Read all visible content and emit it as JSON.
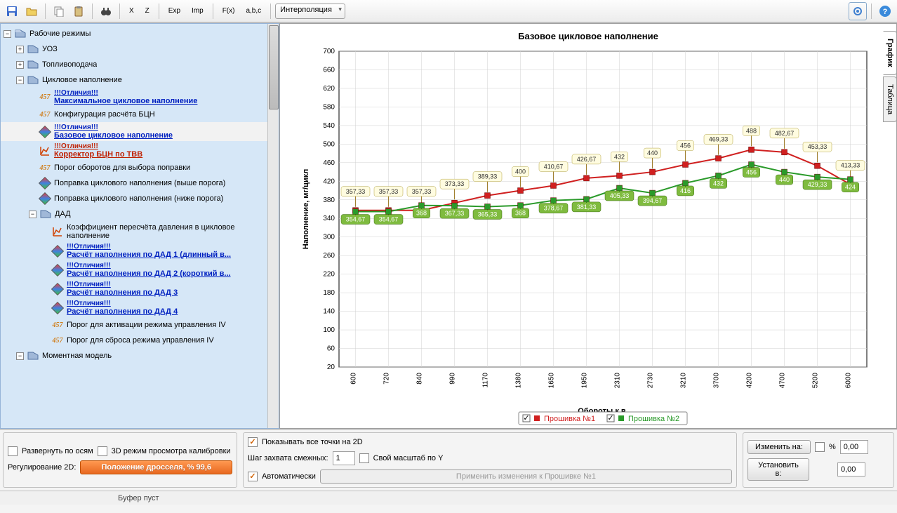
{
  "toolbar": {
    "dropdown_mode": "Интерполяция"
  },
  "tree": {
    "root": "Рабочие режимы",
    "uoz": "УОЗ",
    "fuel": "Топливоподача",
    "cycle_fill": "Цикловое наполнение",
    "diff_label": "!!!Отличия!!!",
    "max_cycle": "Максимальное цикловое наполнение",
    "config_bcn": "Конфигурация расчёта БЦН",
    "base_cycle": "Базовое цикловое наполнение",
    "corrector": "Корректор БЦН по ТВВ",
    "threshold_rpm": "Порог оборотов для выбора поправки",
    "corr_above": "Поправка циклового наполнения (выше порога)",
    "corr_below": "Поправка циклового наполнения (ниже порога)",
    "dad": "ДАД",
    "dad_coef": "Коэффициент пересчёта давления в цикловое наполнение",
    "dad1": "Расчёт наполнения по ДАД 1 (длинный в...",
    "dad2": "Расчёт наполнения по ДАД 2 (короткий в...",
    "dad3": "Расчёт наполнения по ДАД 3",
    "dad4": "Расчёт наполнения по ДАД 4",
    "thresh_act": "Порог для активации режима управления IV",
    "thresh_reset": "Порог для сброса режима управления IV",
    "moment": "Моментная модель"
  },
  "chart": {
    "title": "Базовое цикловое наполнение",
    "xlabel": "Обороты к.в.",
    "ylabel": "Наполнение, мг/цикл",
    "xticks": [
      "600",
      "720",
      "840",
      "990",
      "1170",
      "1380",
      "1650",
      "1950",
      "2310",
      "2730",
      "3210",
      "3700",
      "4200",
      "4700",
      "5200",
      "6000"
    ],
    "ymin": 20,
    "ymax": 700,
    "ystep": 40,
    "series1": {
      "name": "Прошивка №1",
      "color": "#d02020",
      "values": [
        357.33,
        357.33,
        357.33,
        373.33,
        389.33,
        400,
        410.67,
        426.67,
        432,
        440,
        456,
        469.33,
        488,
        482.67,
        453.33,
        413.33
      ]
    },
    "series2": {
      "name": "Прошивка №2",
      "color": "#2a9a2a",
      "values": [
        354.67,
        354.67,
        368,
        367.33,
        365.33,
        368,
        378.67,
        381.33,
        405.33,
        394.67,
        416,
        432,
        456,
        440,
        429.33,
        424
      ]
    },
    "tab1": "График",
    "tab2": "Таблица"
  },
  "bottom": {
    "unfold_axes": "Развернуть по осям",
    "mode_3d": "3D режим просмотра калибровки",
    "reg_2d": "Регулирование 2D:",
    "throttle_pos": "Положение дросселя, % 99,6",
    "show_all_2d": "Показывать все точки на 2D",
    "step_capture": "Шаг захвата смежных:",
    "step_val": "1",
    "own_scale_y": "Свой масштаб по Y",
    "auto": "Автоматически",
    "apply_changes": "Применить изменения к Прошивке №1",
    "change_to": "Изменить на:",
    "pct": "%",
    "val1": "0,00",
    "set_to": "Установить в:",
    "val2": "0,00"
  },
  "status": {
    "buffer": "Буфер пуст"
  }
}
